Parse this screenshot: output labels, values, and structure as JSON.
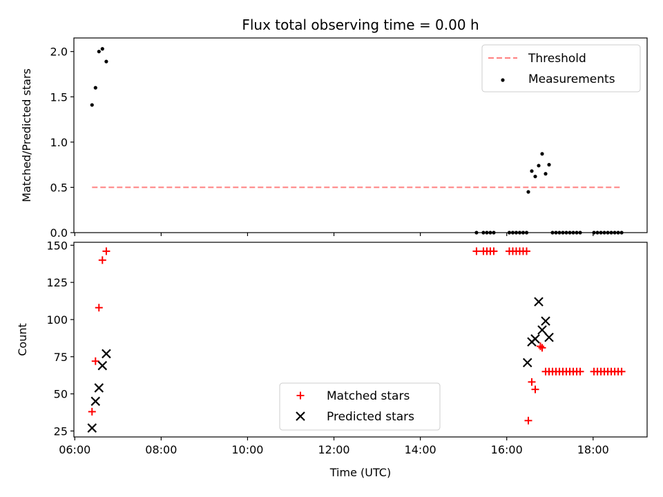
{
  "chart_data": [
    {
      "type": "scatter",
      "title": "Flux total observing time = 0.00 h",
      "ylabel": "Matched/Predicted stars",
      "xlabel": "",
      "xlim": [
        5.98,
        19.25
      ],
      "ylim": [
        0,
        2.15
      ],
      "yticks": [
        "0.0",
        "0.5",
        "1.0",
        "1.5",
        "2.0"
      ],
      "legend_position": "upper right",
      "threshold": {
        "name": "Threshold",
        "value": 0.5,
        "x_start": 6.4,
        "x_end": 18.65,
        "color": "#ff7f7f",
        "style": "dashed"
      },
      "series": [
        {
          "name": "Measurements",
          "color": "#000000",
          "marker": "dot",
          "points": [
            [
              6.4,
              1.41
            ],
            [
              6.48,
              1.6
            ],
            [
              6.56,
              2.0
            ],
            [
              6.64,
              2.03
            ],
            [
              6.73,
              1.89
            ],
            [
              15.3,
              0.0
            ],
            [
              15.46,
              0.0
            ],
            [
              15.54,
              0.0
            ],
            [
              15.62,
              0.0
            ],
            [
              15.7,
              0.0
            ],
            [
              16.06,
              0.0
            ],
            [
              16.14,
              0.0
            ],
            [
              16.22,
              0.0
            ],
            [
              16.3,
              0.0
            ],
            [
              16.38,
              0.0
            ],
            [
              16.46,
              0.0
            ],
            [
              16.5,
              0.45
            ],
            [
              16.58,
              0.68
            ],
            [
              16.66,
              0.62
            ],
            [
              16.74,
              0.74
            ],
            [
              16.82,
              0.87
            ],
            [
              16.9,
              0.65
            ],
            [
              16.98,
              0.75
            ],
            [
              17.06,
              0.0
            ],
            [
              17.14,
              0.0
            ],
            [
              17.22,
              0.0
            ],
            [
              17.3,
              0.0
            ],
            [
              17.38,
              0.0
            ],
            [
              17.46,
              0.0
            ],
            [
              17.54,
              0.0
            ],
            [
              17.62,
              0.0
            ],
            [
              17.7,
              0.0
            ],
            [
              18.02,
              0.0
            ],
            [
              18.1,
              0.0
            ],
            [
              18.18,
              0.0
            ],
            [
              18.26,
              0.0
            ],
            [
              18.34,
              0.0
            ],
            [
              18.42,
              0.0
            ],
            [
              18.5,
              0.0
            ],
            [
              18.58,
              0.0
            ],
            [
              18.66,
              0.0
            ]
          ]
        }
      ]
    },
    {
      "type": "scatter",
      "title": "",
      "xlabel": "Time (UTC)",
      "ylabel": "Count",
      "xlim": [
        5.98,
        19.25
      ],
      "ylim": [
        21,
        152
      ],
      "xticks": [
        {
          "value": 6,
          "label": "06:00"
        },
        {
          "value": 8,
          "label": "08:00"
        },
        {
          "value": 10,
          "label": "10:00"
        },
        {
          "value": 12,
          "label": "12:00"
        },
        {
          "value": 14,
          "label": "14:00"
        },
        {
          "value": 16,
          "label": "16:00"
        },
        {
          "value": 18,
          "label": "18:00"
        }
      ],
      "yticks": [
        "25",
        "50",
        "75",
        "100",
        "125",
        "150"
      ],
      "legend_position": "lower center",
      "series": [
        {
          "name": "Matched stars",
          "color": "#ff0000",
          "marker": "plus",
          "points": [
            [
              6.4,
              38
            ],
            [
              6.48,
              72
            ],
            [
              6.56,
              108
            ],
            [
              6.64,
              140
            ],
            [
              6.73,
              146
            ],
            [
              15.3,
              146
            ],
            [
              15.46,
              146
            ],
            [
              15.54,
              146
            ],
            [
              15.62,
              146
            ],
            [
              15.7,
              146
            ],
            [
              16.06,
              146
            ],
            [
              16.14,
              146
            ],
            [
              16.22,
              146
            ],
            [
              16.3,
              146
            ],
            [
              16.38,
              146
            ],
            [
              16.46,
              146
            ],
            [
              16.5,
              32
            ],
            [
              16.58,
              58
            ],
            [
              16.66,
              53
            ],
            [
              16.78,
              82
            ],
            [
              16.82,
              81
            ],
            [
              16.9,
              65
            ],
            [
              16.98,
              65
            ],
            [
              17.06,
              65
            ],
            [
              17.14,
              65
            ],
            [
              17.22,
              65
            ],
            [
              17.3,
              65
            ],
            [
              17.38,
              65
            ],
            [
              17.46,
              65
            ],
            [
              17.54,
              65
            ],
            [
              17.62,
              65
            ],
            [
              17.7,
              65
            ],
            [
              18.02,
              65
            ],
            [
              18.1,
              65
            ],
            [
              18.18,
              65
            ],
            [
              18.26,
              65
            ],
            [
              18.34,
              65
            ],
            [
              18.42,
              65
            ],
            [
              18.5,
              65
            ],
            [
              18.58,
              65
            ],
            [
              18.66,
              65
            ]
          ]
        },
        {
          "name": "Predicted stars",
          "color": "#000000",
          "marker": "x",
          "points": [
            [
              6.4,
              27
            ],
            [
              6.48,
              45
            ],
            [
              6.56,
              54
            ],
            [
              6.64,
              69
            ],
            [
              6.73,
              77
            ],
            [
              16.48,
              71
            ],
            [
              16.58,
              85
            ],
            [
              16.66,
              87
            ],
            [
              16.74,
              112
            ],
            [
              16.82,
              93
            ],
            [
              16.9,
              99
            ],
            [
              16.98,
              88
            ]
          ]
        }
      ]
    }
  ]
}
